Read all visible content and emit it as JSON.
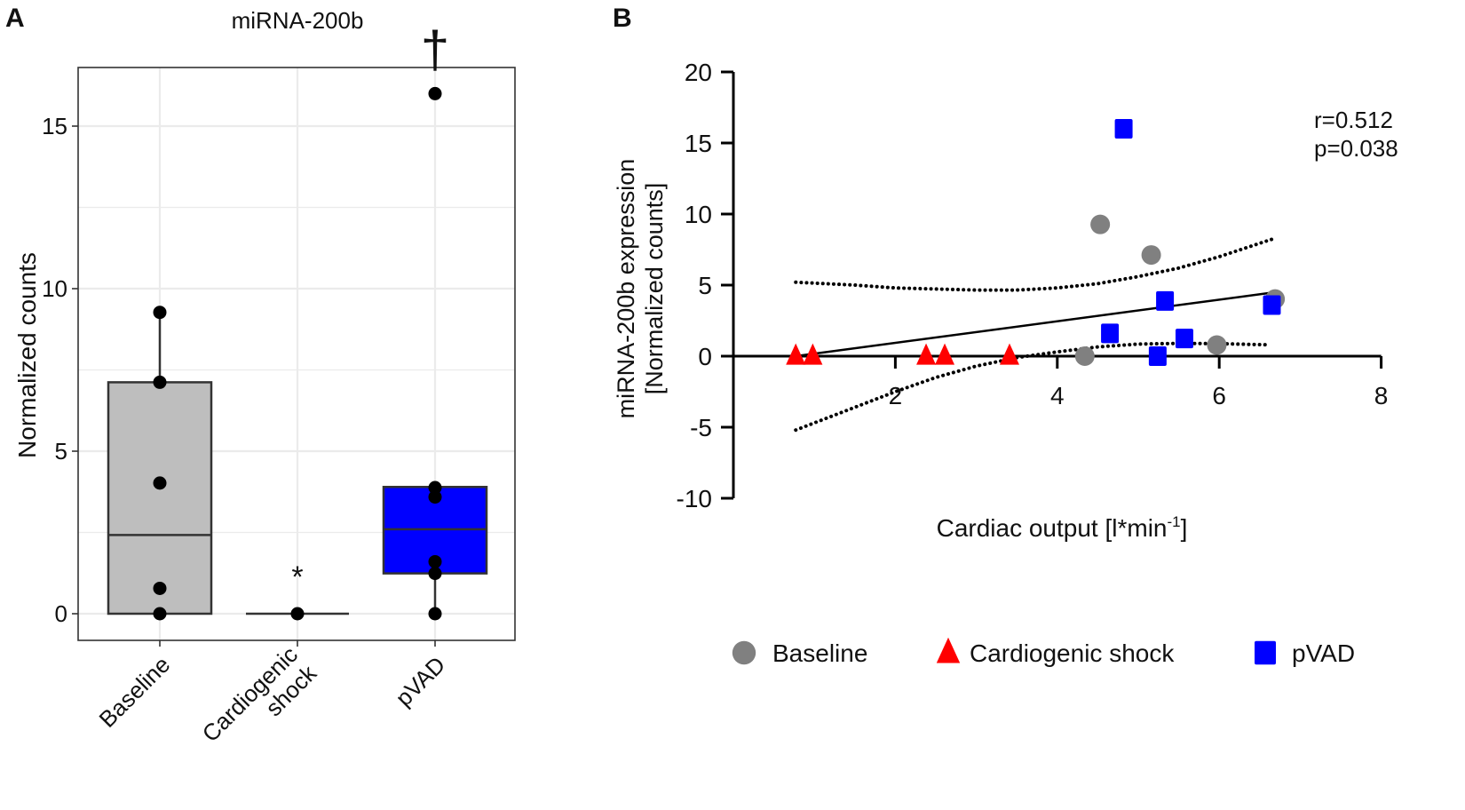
{
  "chart_data": [
    {
      "type": "box",
      "panel_label": "A",
      "title": "miRNA-200b",
      "xlabel": "",
      "ylabel": "Normalized counts",
      "ylim": [
        0,
        16.8
      ],
      "yticks": [
        0,
        5,
        10,
        15
      ],
      "grid": true,
      "categories": [
        "Baseline",
        "Cardiogenic shock",
        "pVAD"
      ],
      "category_label_lines": [
        [
          "Baseline"
        ],
        [
          "Cardiogenic",
          "shock"
        ],
        [
          "pVAD"
        ]
      ],
      "groups": [
        {
          "name": "Baseline",
          "fill": "#bebebe",
          "q1": 0,
          "median": 2.42,
          "q3": 7.12,
          "whisker_low": 0,
          "whisker_high": 9.27,
          "points": [
            9.27,
            7.12,
            4.02,
            0.78,
            0
          ],
          "annotation": ""
        },
        {
          "name": "Cardiogenic shock",
          "fill": "#ffffff",
          "q1": 0,
          "median": 0,
          "q3": 0,
          "whisker_low": 0,
          "whisker_high": 0,
          "points": [
            0
          ],
          "annotation": "*"
        },
        {
          "name": "pVAD",
          "fill": "#0000ff",
          "q1": 1.24,
          "median": 2.6,
          "q3": 3.9,
          "whisker_low": 0,
          "whisker_high": 3.9,
          "points": [
            16.0,
            3.88,
            3.59,
            1.6,
            1.24,
            0
          ],
          "annotation": "†"
        }
      ]
    },
    {
      "type": "scatter",
      "panel_label": "B",
      "xlabel": "Cardiac output [l*min",
      "xlabel_sup": "-1",
      "xlabel_end": "]",
      "ylabel_lines": [
        "miRNA-200b expression",
        "[Normalized counts]"
      ],
      "xlim": [
        0,
        8
      ],
      "ylim": [
        -10,
        20
      ],
      "xticks": [
        2,
        4,
        6,
        8
      ],
      "yticks": [
        -10,
        -5,
        0,
        5,
        10,
        15,
        20
      ],
      "grid": false,
      "annotation": [
        "r=0.512",
        "p=0.038"
      ],
      "legend_position": "bottom",
      "series": [
        {
          "name": "Baseline",
          "marker": "circle",
          "color": "#808080",
          "points": [
            [
              4.34,
              0
            ],
            [
              4.53,
              9.27
            ],
            [
              5.16,
              7.12
            ],
            [
              5.97,
              0.78
            ],
            [
              6.69,
              4.02
            ]
          ]
        },
        {
          "name": "Cardiogenic shock",
          "marker": "triangle",
          "color": "#ff0000",
          "points": [
            [
              0.77,
              0
            ],
            [
              0.98,
              0
            ],
            [
              2.38,
              0
            ],
            [
              2.61,
              0
            ],
            [
              3.41,
              0
            ]
          ]
        },
        {
          "name": "pVAD",
          "marker": "square",
          "color": "#0000ff",
          "points": [
            [
              4.82,
              16.0
            ],
            [
              5.33,
              3.88
            ],
            [
              4.65,
              1.6
            ],
            [
              5.57,
              1.24
            ],
            [
              5.24,
              0
            ],
            [
              6.65,
              3.59
            ]
          ]
        }
      ],
      "regression_line": [
        [
          0.77,
          0
        ],
        [
          6.69,
          4.5
        ]
      ],
      "ci_upper": [
        [
          0.77,
          5.2
        ],
        [
          1.5,
          5.0
        ],
        [
          2,
          4.8
        ],
        [
          3,
          4.65
        ],
        [
          3.5,
          4.65
        ],
        [
          4,
          4.8
        ],
        [
          4.5,
          5.1
        ],
        [
          5,
          5.6
        ],
        [
          5.5,
          6.2
        ],
        [
          6,
          7.0
        ],
        [
          6.69,
          8.3
        ]
      ],
      "ci_lower": [
        [
          0.77,
          -5.2
        ],
        [
          1.5,
          -3.6
        ],
        [
          2,
          -2.5
        ],
        [
          2.5,
          -1.5
        ],
        [
          3,
          -0.7
        ],
        [
          3.5,
          -0.1
        ],
        [
          4,
          0.3
        ],
        [
          4.5,
          0.65
        ],
        [
          5,
          0.85
        ],
        [
          5.5,
          0.9
        ],
        [
          6,
          0.88
        ],
        [
          6.6,
          0.8
        ]
      ]
    }
  ]
}
